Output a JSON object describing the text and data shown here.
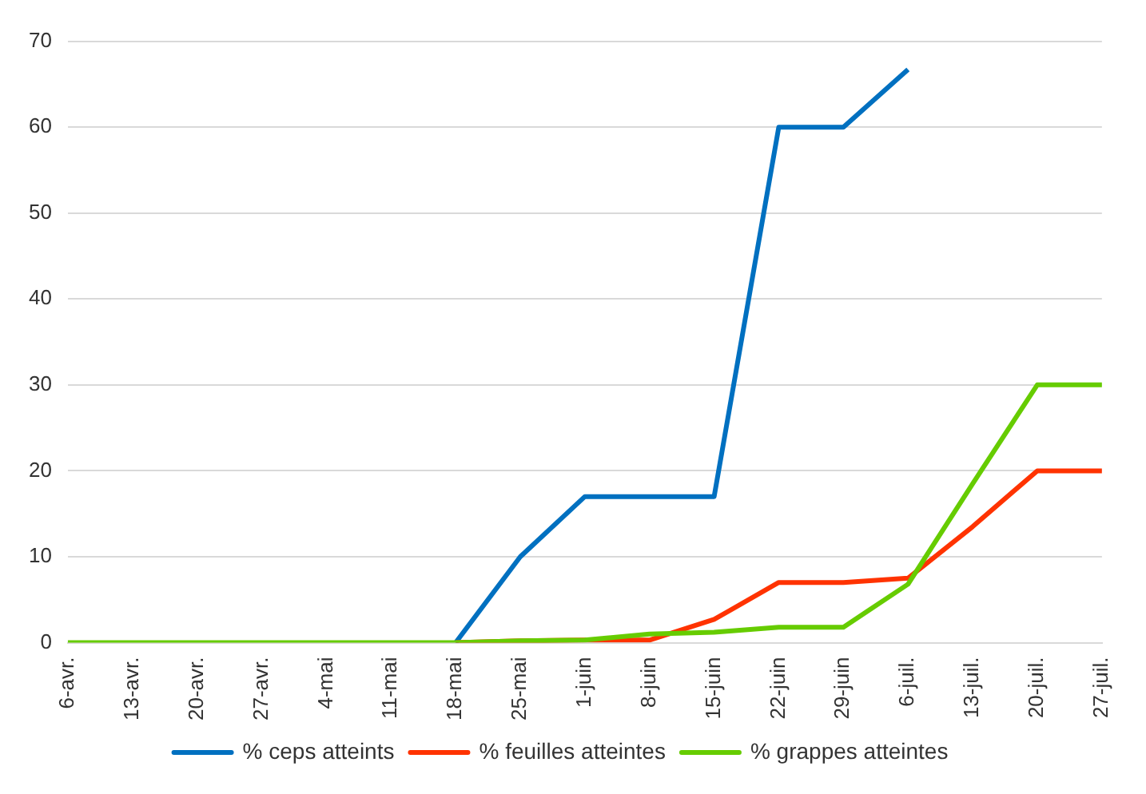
{
  "chart_data": {
    "type": "line",
    "categories": [
      "6-avr.",
      "13-avr.",
      "20-avr.",
      "27-avr.",
      "4-mai",
      "11-mai",
      "18-mai",
      "25-mai",
      "1-juin",
      "8-juin",
      "15-juin",
      "22-juin",
      "29-juin",
      "6-juil.",
      "13-juil.",
      "20-juil.",
      "27-juil."
    ],
    "series": [
      {
        "name": "% ceps atteints",
        "color": "#0070c0",
        "values": [
          null,
          null,
          null,
          null,
          null,
          null,
          0,
          10,
          17,
          17,
          17,
          60,
          60,
          66.7,
          null,
          null,
          null
        ]
      },
      {
        "name": "% feuilles atteintes",
        "color": "#ff3300",
        "values": [
          null,
          null,
          null,
          null,
          null,
          null,
          0,
          0.2,
          0.3,
          0.3,
          2.7,
          7,
          7,
          7.5,
          13.5,
          20,
          20
        ]
      },
      {
        "name": "% grappes atteintes",
        "color": "#66cc00",
        "values": [
          0,
          0,
          0,
          0,
          0,
          0,
          0,
          0.2,
          0.3,
          1,
          1.2,
          1.8,
          1.8,
          6.8,
          18.5,
          30,
          30
        ]
      }
    ],
    "ylim": [
      0,
      70
    ],
    "yticks": [
      0,
      10,
      20,
      30,
      40,
      50,
      60,
      70
    ],
    "grid": "y",
    "legend": "bottom",
    "marker": "none",
    "line_style": "solid"
  }
}
